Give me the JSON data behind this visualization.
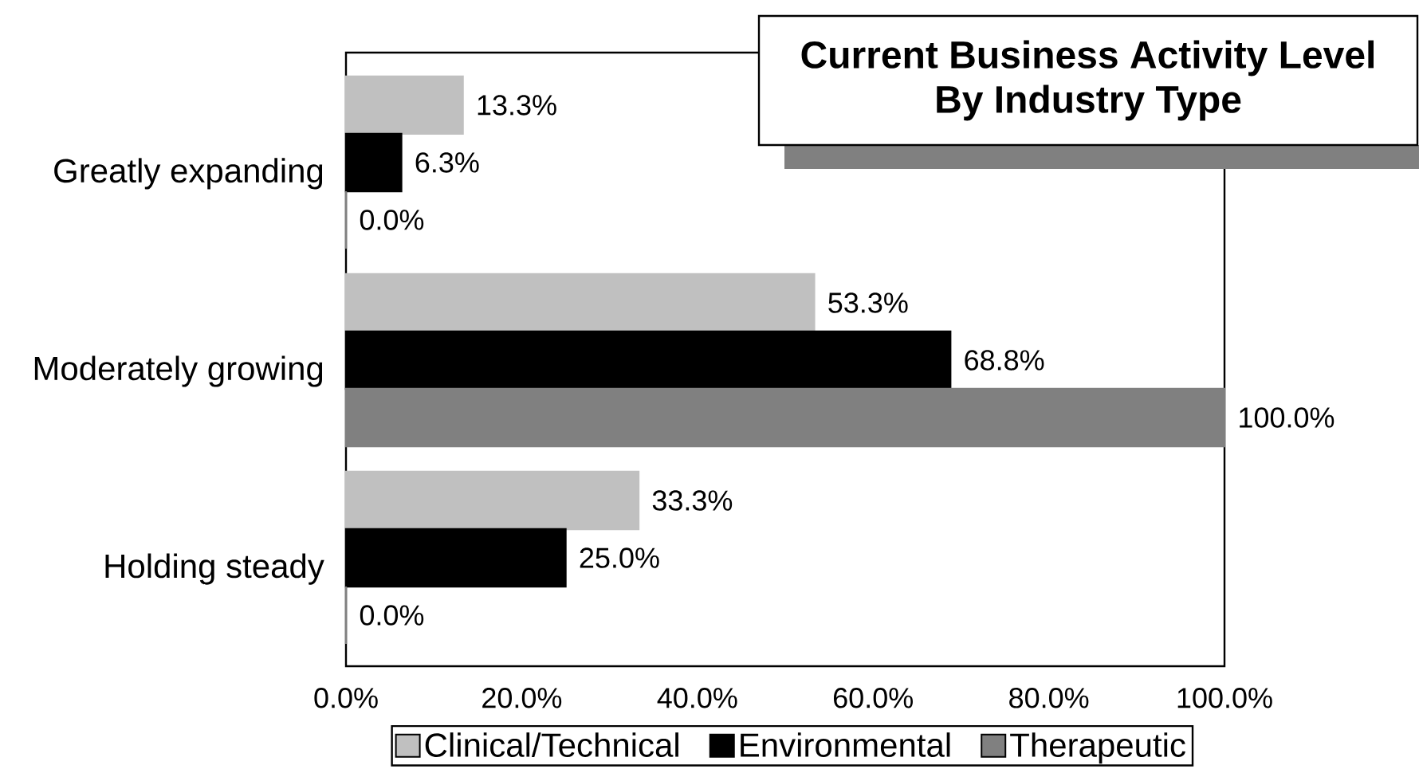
{
  "chart_data": {
    "type": "bar",
    "orientation": "horizontal",
    "title": "Current Business Activity Level By Industry Type",
    "categories": [
      "Greatly expanding",
      "Moderately growing",
      "Holding steady"
    ],
    "series": [
      {
        "name": "Clinical/Technical",
        "color": "#c0c0c0",
        "values": [
          13.3,
          53.3,
          33.3
        ],
        "value_labels": [
          "13.3%",
          "53.3%",
          "33.3%"
        ]
      },
      {
        "name": "Environmental",
        "color": "#000000",
        "values": [
          6.3,
          68.8,
          25.0
        ],
        "value_labels": [
          "6.3%",
          "68.8%",
          "25.0%"
        ]
      },
      {
        "name": "Therapeutic",
        "color": "#808080",
        "values": [
          0.0,
          100.0,
          0.0
        ],
        "value_labels": [
          "0.0%",
          "100.0%",
          "0.0%"
        ]
      }
    ],
    "xlim": [
      0,
      100
    ],
    "xticks": [
      {
        "value": 0,
        "label": "0.0%"
      },
      {
        "value": 20,
        "label": "20.0%"
      },
      {
        "value": 40,
        "label": "40.0%"
      },
      {
        "value": 60,
        "label": "60.0%"
      },
      {
        "value": 80,
        "label": "80.0%"
      },
      {
        "value": 100,
        "label": "100.0%"
      }
    ],
    "legend": "bottom"
  }
}
